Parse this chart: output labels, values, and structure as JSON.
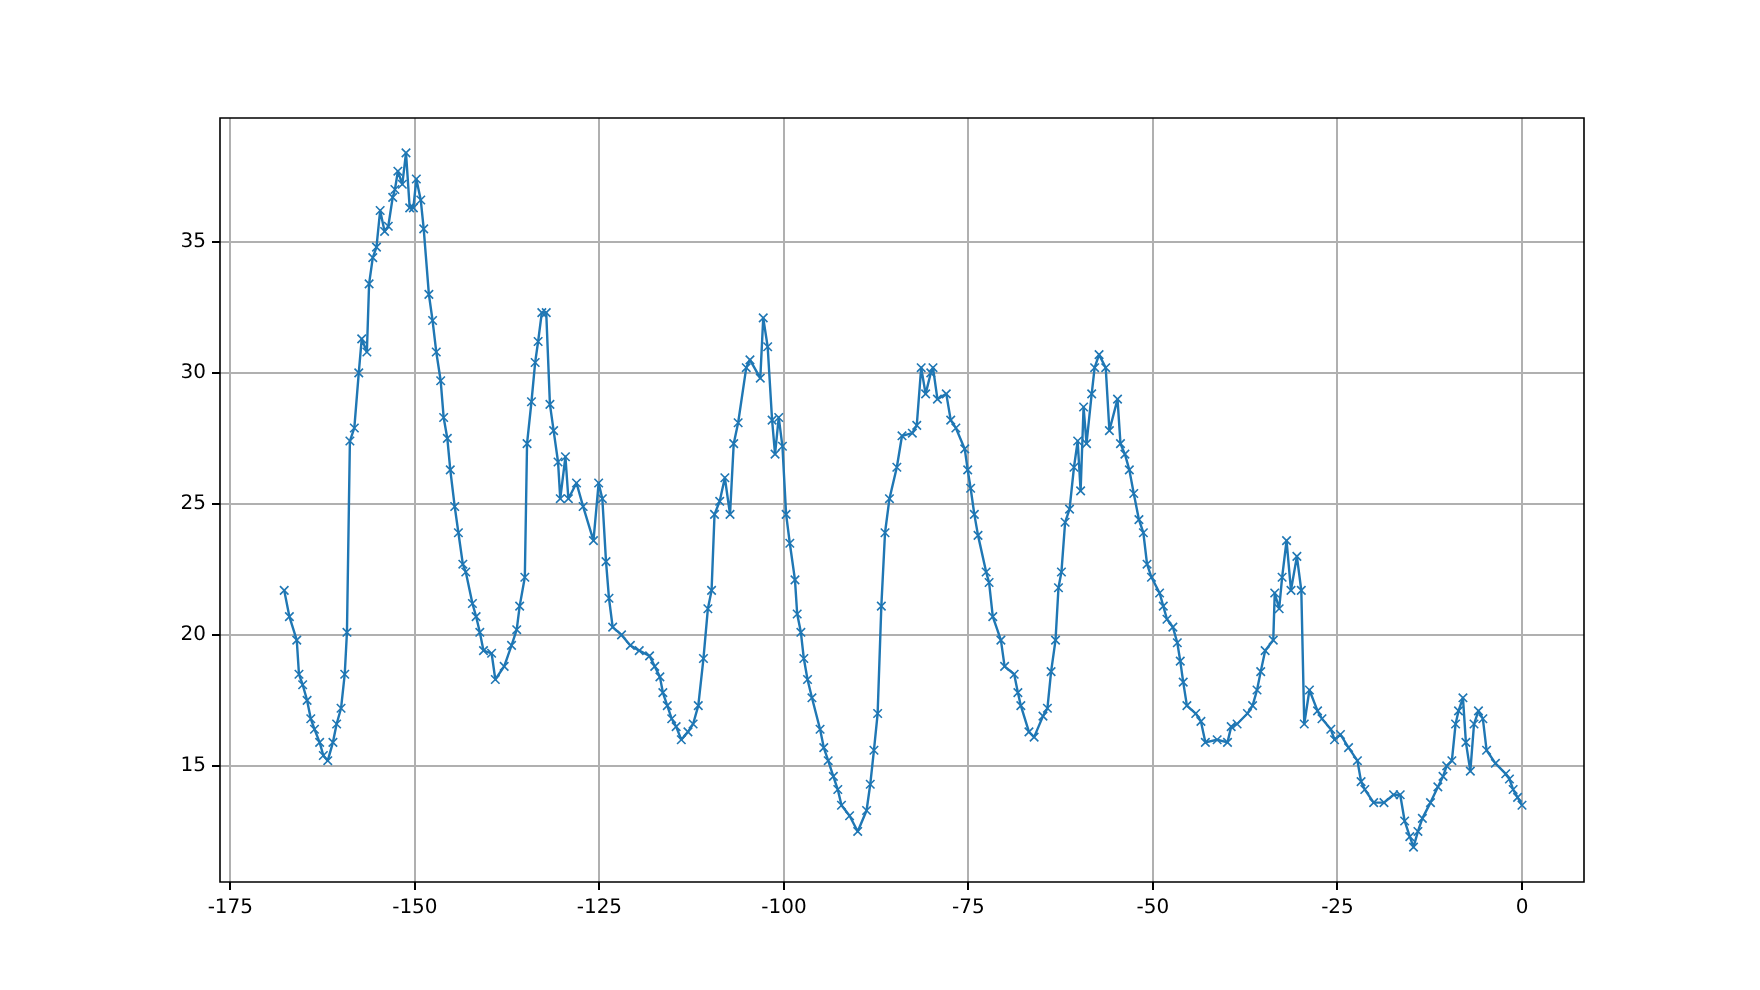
{
  "chart_data": {
    "type": "line",
    "marker": "cross",
    "grid": true,
    "x": [
      -167.7,
      -167,
      -166,
      -165.7,
      -165.2,
      -164.6,
      -164.1,
      -163.6,
      -162.9,
      -162.4,
      -161.8,
      -161.1,
      -160.6,
      -160,
      -159.5,
      -159.2,
      -158.8,
      -158.2,
      -157.6,
      -157.2,
      -156.5,
      -156.2,
      -155.7,
      -155.2,
      -154.7,
      -154.1,
      -153.6,
      -153,
      -152.7,
      -152.3,
      -151.7,
      -151.2,
      -150.7,
      -150.2,
      -149.8,
      -149.2,
      -148.8,
      -148.1,
      -147.6,
      -147.1,
      -146.5,
      -146.1,
      -145.6,
      -145.2,
      -144.6,
      -144.1,
      -143.5,
      -143.1,
      -142.2,
      -141.7,
      -141.2,
      -140.7,
      -139.6,
      -139.1,
      -137.9,
      -136.9,
      -136.2,
      -135.8,
      -135.1,
      -134.8,
      -134.2,
      -133.7,
      -133.3,
      -132.8,
      -132.2,
      -131.7,
      -131.2,
      -130.6,
      -130.3,
      -129.6,
      -129.2,
      -128.1,
      -127.2,
      -125.8,
      -125.1,
      -124.6,
      -124.1,
      -123.7,
      -123.2,
      -122,
      -120.8,
      -119.6,
      -118.2,
      -117.5,
      -116.8,
      -116.4,
      -115.8,
      -115.2,
      -114.6,
      -113.9,
      -113,
      -112.3,
      -111.6,
      -110.9,
      -110.3,
      -109.8,
      -109.4,
      -108.7,
      -108,
      -107.3,
      -106.8,
      -106.2,
      -105.1,
      -104.6,
      -103.2,
      -102.8,
      -102.2,
      -101.6,
      -101.2,
      -100.7,
      -100.2,
      -99.7,
      -99.2,
      -98.5,
      -98.2,
      -97.7,
      -97.3,
      -96.8,
      -96.2,
      -95.1,
      -94.6,
      -94,
      -93.3,
      -92.7,
      -92.2,
      -91.1,
      -90,
      -88.8,
      -88.3,
      -87.8,
      -87.3,
      -86.8,
      -86.3,
      -85.7,
      -84.7,
      -84,
      -82.6,
      -82,
      -81.4,
      -80.8,
      -80.1,
      -79.8,
      -79.2,
      -78,
      -77.4,
      -76.7,
      -75.5,
      -75.1,
      -74.7,
      -74.2,
      -73.7,
      -72.6,
      -72.2,
      -71.7,
      -70.6,
      -70.1,
      -68.8,
      -68.3,
      -67.9,
      -66.8,
      -66.1,
      -64.9,
      -64.3,
      -63.8,
      -63.2,
      -62.8,
      -62.4,
      -61.9,
      -61.3,
      -60.7,
      -60.2,
      -59.8,
      -59.4,
      -59,
      -58.3,
      -57.9,
      -57.3,
      -56.4,
      -55.9,
      -54.8,
      -54.4,
      -53.8,
      -53.2,
      -52.6,
      -51.9,
      -51.3,
      -50.8,
      -50.2,
      -49.1,
      -48.6,
      -48.1,
      -47.3,
      -46.7,
      -46.3,
      -45.9,
      -45.4,
      -44.2,
      -43.5,
      -42.9,
      -41.3,
      -39.9,
      -39.4,
      -38.6,
      -37.2,
      -36.5,
      -35.9,
      -35.4,
      -34.8,
      -33.7,
      -33.5,
      -32.9,
      -32.5,
      -31.9,
      -31.3,
      -30.5,
      -29.9,
      -29.5,
      -28.8,
      -27.7,
      -27.1,
      -25.9,
      -25.4,
      -24.6,
      -23.5,
      -22.3,
      -21.8,
      -21.3,
      -20.1,
      -18.7,
      -17.4,
      -16.5,
      -15.9,
      -15.2,
      -14.7,
      -14.1,
      -13.5,
      -12.4,
      -11.4,
      -10.7,
      -10.2,
      -9.5,
      -9,
      -8.6,
      -8,
      -7.6,
      -7,
      -6.5,
      -5.9,
      -5.3,
      -4.8,
      -3.6,
      -2.2,
      -1.7,
      -1.2,
      -0.6,
      0
    ],
    "series": [
      {
        "color": "#1f77b4",
        "values": [
          21.7,
          20.7,
          19.8,
          18.5,
          18.1,
          17.5,
          16.8,
          16.4,
          15.9,
          15.4,
          15.2,
          15.9,
          16.6,
          17.2,
          18.5,
          20.1,
          27.4,
          27.9,
          30,
          31.3,
          30.8,
          33.4,
          34.4,
          34.8,
          36.2,
          35.4,
          35.6,
          36.7,
          37,
          37.7,
          37.2,
          38.4,
          36.3,
          36.3,
          37.4,
          36.6,
          35.5,
          33,
          32,
          30.8,
          29.7,
          28.3,
          27.5,
          26.3,
          24.9,
          23.9,
          22.7,
          22.4,
          21.2,
          20.7,
          20.1,
          19.4,
          19.3,
          18.3,
          18.8,
          19.6,
          20.2,
          21.1,
          22.2,
          27.3,
          28.9,
          30.4,
          31.2,
          32.3,
          32.3,
          28.8,
          27.8,
          26.6,
          25.2,
          26.8,
          25.2,
          25.8,
          24.9,
          23.6,
          25.8,
          25.2,
          22.8,
          21.4,
          20.3,
          20,
          19.6,
          19.4,
          19.2,
          18.8,
          18.4,
          17.8,
          17.3,
          16.8,
          16.5,
          16,
          16.3,
          16.6,
          17.3,
          19.1,
          21,
          21.7,
          24.6,
          25.1,
          26,
          24.6,
          27.3,
          28.1,
          30.2,
          30.5,
          29.8,
          32.1,
          31,
          28.2,
          26.9,
          28.3,
          27.2,
          24.6,
          23.5,
          22.1,
          20.8,
          20.1,
          19.1,
          18.3,
          17.6,
          16.4,
          15.7,
          15.2,
          14.6,
          14.1,
          13.5,
          13.1,
          12.5,
          13.3,
          14.3,
          15.6,
          17,
          21.1,
          23.9,
          25.2,
          26.4,
          27.6,
          27.7,
          28,
          30.2,
          29.2,
          30,
          30.2,
          29,
          29.2,
          28.2,
          27.9,
          27.1,
          26.3,
          25.6,
          24.6,
          23.8,
          22.4,
          22,
          20.7,
          19.8,
          18.8,
          18.5,
          17.8,
          17.3,
          16.3,
          16.1,
          16.9,
          17.2,
          18.6,
          19.8,
          21.8,
          22.4,
          24.3,
          24.8,
          26.4,
          27.4,
          25.5,
          28.7,
          27.3,
          29.2,
          30.2,
          30.7,
          30.2,
          27.8,
          29,
          27.3,
          26.9,
          26.3,
          25.4,
          24.4,
          23.9,
          22.7,
          22.2,
          21.6,
          21.1,
          20.6,
          20.3,
          19.7,
          19,
          18.2,
          17.3,
          17,
          16.7,
          15.9,
          16,
          15.9,
          16.5,
          16.6,
          17,
          17.3,
          17.9,
          18.6,
          19.4,
          19.8,
          21.6,
          21,
          22.2,
          23.6,
          21.7,
          23,
          21.7,
          16.6,
          17.9,
          17.1,
          16.8,
          16.4,
          16,
          16.2,
          15.7,
          15.2,
          14.4,
          14.1,
          13.6,
          13.6,
          13.9,
          13.9,
          12.9,
          12.3,
          11.9,
          12.5,
          13,
          13.6,
          14.2,
          14.6,
          15,
          15.2,
          16.6,
          17.1,
          17.6,
          15.9,
          14.8,
          16.6,
          17.1,
          16.8,
          15.6,
          15.1,
          14.7,
          14.5,
          14.1,
          13.8,
          13.5
        ]
      }
    ],
    "xlim": [
      -176.4,
      8.4
    ],
    "xticks": [
      -175,
      -150,
      -125,
      -100,
      -75,
      -50,
      -25,
      0
    ],
    "ylim": [
      10.57,
      39.73
    ],
    "yticks": [
      15,
      20,
      25,
      30,
      35
    ]
  }
}
